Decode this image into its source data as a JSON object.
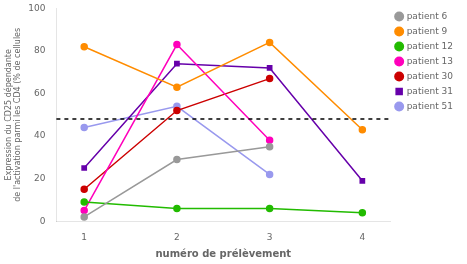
{
  "chart_data": {
    "type": "line",
    "xlabel": "numéro de prélèvement",
    "ylabel": "Expression du CD25 dépendante\nde l'activation parmi les CD4 (% de cellules",
    "series": [
      {
        "name": "patient 6",
        "color": "#999999",
        "marker": "circle",
        "x": [
          1,
          2,
          3,
          4
        ],
        "values": [
          2,
          29,
          35,
          null
        ]
      },
      {
        "name": "patient 9",
        "color": "#FF8C00",
        "marker": "circle",
        "x": [
          1,
          2,
          3,
          4
        ],
        "values": [
          82,
          63,
          84,
          43
        ]
      },
      {
        "name": "patient 12",
        "color": "#22BB00",
        "marker": "circle",
        "x": [
          1,
          2,
          3,
          4
        ],
        "values": [
          9,
          6,
          6,
          4
        ]
      },
      {
        "name": "patient 13",
        "color": "#FF00BB",
        "marker": "circle",
        "x": [
          1,
          2,
          3
        ],
        "values": [
          5,
          83,
          38
        ]
      },
      {
        "name": "patient 30",
        "color": "#CC0000",
        "marker": "circle",
        "x": [
          1,
          2,
          3,
          4
        ],
        "values": [
          15,
          52,
          67,
          null
        ]
      },
      {
        "name": "patient 31",
        "color": "#6600AA",
        "marker": "square",
        "x": [
          1,
          2,
          3,
          4
        ],
        "values": [
          25,
          74,
          72,
          19
        ]
      },
      {
        "name": "patient 51",
        "color": "#9999EE",
        "marker": "circle",
        "x": [
          1,
          2,
          3
        ],
        "values": [
          44,
          54,
          22
        ]
      }
    ],
    "reference_lines": [
      {
        "y": 48,
        "color": "#000000",
        "line_style": "dashed"
      }
    ],
    "xlim": [
      0.7,
      4.3
    ],
    "xticks": [
      1,
      2,
      3,
      4
    ],
    "ylim": [
      0,
      100
    ],
    "yticks": [
      0,
      20,
      40,
      60,
      80,
      100
    ],
    "grid": false,
    "legend": "right"
  }
}
